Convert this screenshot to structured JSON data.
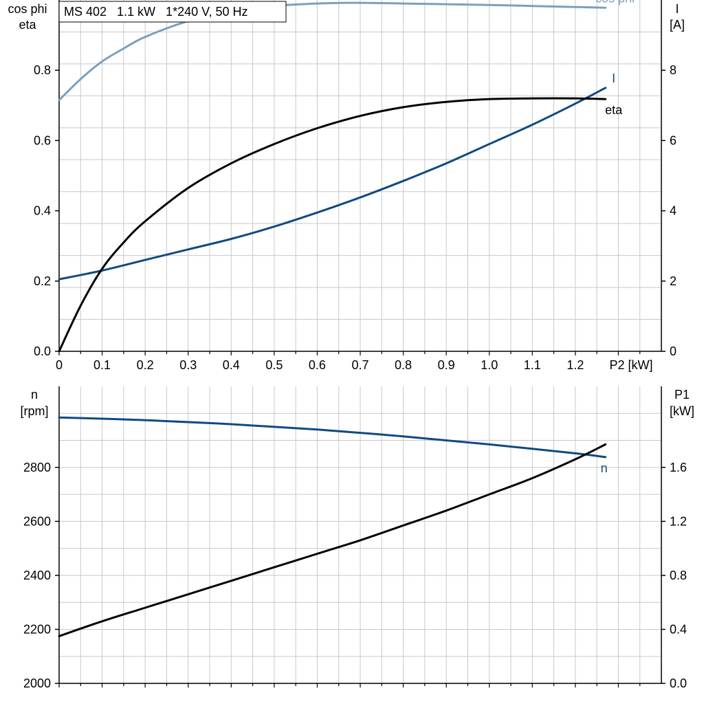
{
  "colors": {
    "grid": "#c8c8c8",
    "axis": "#000000",
    "cos_phi": "#7a9fbf",
    "current": "#0e4a80",
    "eta": "#000000",
    "speed": "#0e4a80",
    "p1": "#000000"
  },
  "chart_data": [
    {
      "type": "line",
      "title": "MS 402   1.1 kW   1*240 V, 50 Hz",
      "xlabel": "P2 [kW]",
      "xlim": [
        0,
        1.4
      ],
      "xticks": [
        "0",
        "0.1",
        "0.2",
        "0.3",
        "0.4",
        "0.5",
        "0.6",
        "0.7",
        "0.8",
        "0.9",
        "1.0",
        "1.1",
        "1.2"
      ],
      "ylabel_left": [
        "cos phi",
        "eta"
      ],
      "ylim_left": [
        0,
        1.0
      ],
      "yticks_left": [
        "0.0",
        "0.2",
        "0.4",
        "0.6",
        "0.8"
      ],
      "ylabel_right": [
        "I",
        "[A]"
      ],
      "ylim_right": [
        0,
        10
      ],
      "yticks_right": [
        "0",
        "2",
        "4",
        "6",
        "8"
      ],
      "grid": true,
      "series": [
        {
          "name": "cos phi",
          "axis": "left",
          "x": [
            0,
            0.05,
            0.1,
            0.15,
            0.2,
            0.3,
            0.4,
            0.5,
            0.6,
            0.7,
            0.8,
            0.9,
            1.0,
            1.1,
            1.2,
            1.27
          ],
          "y": [
            0.715,
            0.775,
            0.825,
            0.862,
            0.895,
            0.94,
            0.967,
            0.983,
            0.99,
            0.992,
            0.99,
            0.988,
            0.986,
            0.983,
            0.98,
            0.978
          ]
        },
        {
          "name": "I",
          "axis": "right",
          "x": [
            0,
            0.1,
            0.2,
            0.3,
            0.4,
            0.5,
            0.6,
            0.7,
            0.8,
            0.9,
            1.0,
            1.1,
            1.2,
            1.27
          ],
          "y": [
            2.05,
            2.3,
            2.6,
            2.9,
            3.2,
            3.55,
            3.95,
            4.38,
            4.85,
            5.35,
            5.9,
            6.45,
            7.05,
            7.5
          ]
        },
        {
          "name": "eta",
          "axis": "left",
          "x": [
            0,
            0.05,
            0.1,
            0.15,
            0.2,
            0.3,
            0.4,
            0.5,
            0.6,
            0.7,
            0.8,
            0.9,
            1.0,
            1.1,
            1.2,
            1.27
          ],
          "y": [
            0.0,
            0.13,
            0.235,
            0.31,
            0.37,
            0.465,
            0.535,
            0.59,
            0.635,
            0.67,
            0.695,
            0.71,
            0.718,
            0.72,
            0.72,
            0.718
          ]
        }
      ]
    },
    {
      "type": "line",
      "xlabel": "",
      "xlim": [
        0,
        1.4
      ],
      "ylabel_left": [
        "n",
        "[rpm]"
      ],
      "ylim_left": [
        2000,
        3100
      ],
      "yticks_left": [
        "2000",
        "2200",
        "2400",
        "2600",
        "2800"
      ],
      "ylabel_right": [
        "P1",
        "[kW]"
      ],
      "ylim_right": [
        0,
        2.2
      ],
      "yticks_right": [
        "0.0",
        "0.4",
        "0.8",
        "1.2",
        "1.6"
      ],
      "grid": true,
      "series": [
        {
          "name": "n",
          "axis": "left",
          "x": [
            0,
            0.2,
            0.4,
            0.6,
            0.8,
            1.0,
            1.2,
            1.27
          ],
          "y": [
            2985,
            2975,
            2960,
            2940,
            2915,
            2885,
            2852,
            2838
          ]
        },
        {
          "name": "",
          "axis": "right",
          "x": [
            0,
            0.1,
            0.2,
            0.3,
            0.4,
            0.5,
            0.6,
            0.7,
            0.8,
            0.9,
            1.0,
            1.1,
            1.2,
            1.27
          ],
          "y": [
            0.35,
            0.46,
            0.56,
            0.66,
            0.76,
            0.86,
            0.96,
            1.06,
            1.17,
            1.28,
            1.4,
            1.52,
            1.66,
            1.77
          ]
        }
      ]
    }
  ]
}
